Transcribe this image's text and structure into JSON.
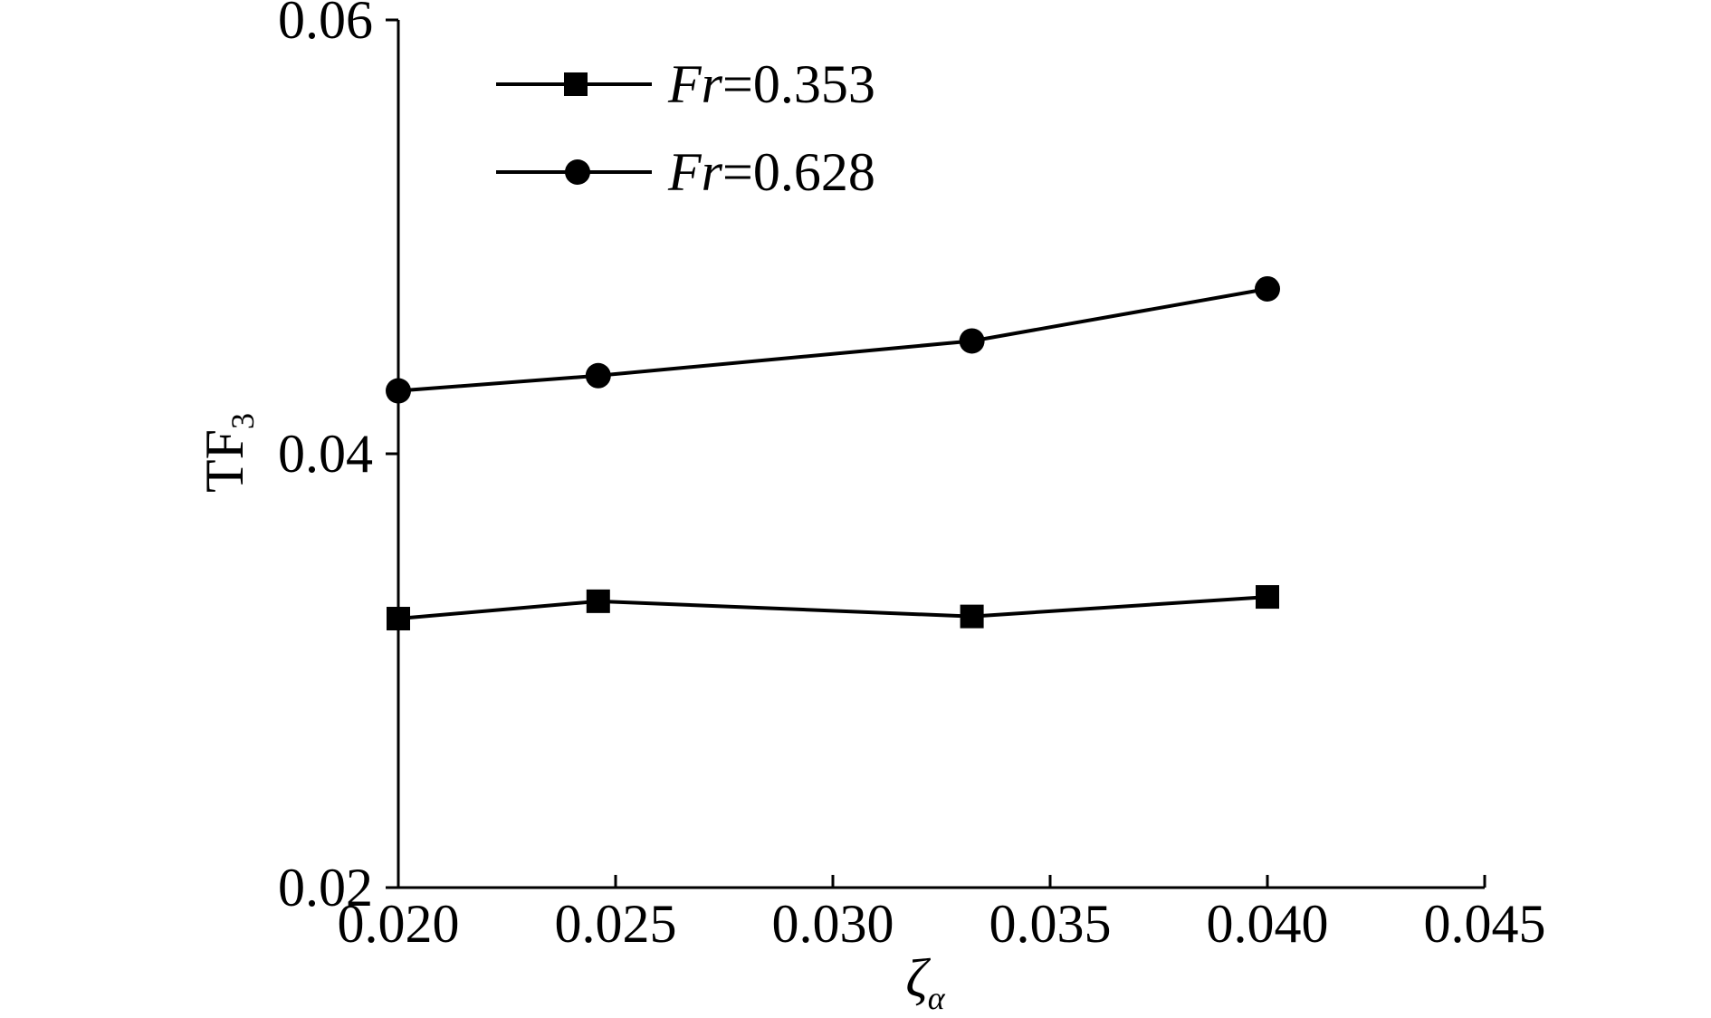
{
  "chart_data": {
    "type": "line",
    "xlabel": "ζ",
    "xlabel_subscript": "α",
    "ylabel": "TF",
    "ylabel_subscript": "3",
    "xlim": [
      0.02,
      0.045
    ],
    "ylim": [
      0.02,
      0.06
    ],
    "xticks": [
      "0.020",
      "0.025",
      "0.030",
      "0.035",
      "0.040",
      "0.045"
    ],
    "xtick_values": [
      0.02,
      0.025,
      0.03,
      0.035,
      0.04,
      0.045
    ],
    "yticks": [
      "0.02",
      "0.04",
      "0.06"
    ],
    "ytick_values": [
      0.02,
      0.04,
      0.06
    ],
    "grid": false,
    "legend_position": "top-left",
    "series": [
      {
        "legend_prefix": "Fr",
        "legend_suffix": "=0.353",
        "marker": "square",
        "color": "#000000",
        "x": [
          0.02,
          0.0246,
          0.0332,
          0.04
        ],
        "y": [
          0.0324,
          0.0332,
          0.0325,
          0.0334
        ]
      },
      {
        "legend_prefix": "Fr",
        "legend_suffix": "=0.628",
        "marker": "circle",
        "color": "#000000",
        "x": [
          0.02,
          0.0246,
          0.0332,
          0.04
        ],
        "y": [
          0.0429,
          0.0436,
          0.0452,
          0.0476
        ]
      }
    ]
  }
}
